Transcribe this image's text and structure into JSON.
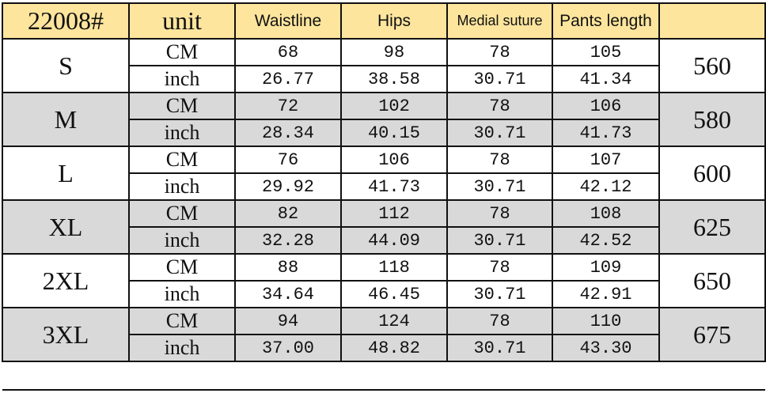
{
  "header": {
    "style_no": "22008#",
    "unit": "unit",
    "columns": [
      "Waistline",
      "Hips",
      "Medial suture",
      "Pants length"
    ],
    "last": ""
  },
  "colors": {
    "header_bg": "#fde59d",
    "alt_row_bg": "#d9d9d9"
  },
  "rows": [
    {
      "size": "S",
      "extra": "560",
      "cm_label": "CM",
      "inch_label": "inch",
      "cm": [
        "68",
        "98",
        "78",
        "105"
      ],
      "inch": [
        "26.77",
        "38.58",
        "30.71",
        "41.34"
      ]
    },
    {
      "size": "M",
      "extra": "580",
      "cm_label": "CM",
      "inch_label": "inch",
      "cm": [
        "72",
        "102",
        "78",
        "106"
      ],
      "inch": [
        "28.34",
        "40.15",
        "30.71",
        "41.73"
      ]
    },
    {
      "size": "L",
      "extra": "600",
      "cm_label": "CM",
      "inch_label": "inch",
      "cm": [
        "76",
        "106",
        "78",
        "107"
      ],
      "inch": [
        "29.92",
        "41.73",
        "30.71",
        "42.12"
      ]
    },
    {
      "size": "XL",
      "extra": "625",
      "cm_label": "CM",
      "inch_label": "inch",
      "cm": [
        "82",
        "112",
        "78",
        "108"
      ],
      "inch": [
        "32.28",
        "44.09",
        "30.71",
        "42.52"
      ]
    },
    {
      "size": "2XL",
      "extra": "650",
      "cm_label": "CM",
      "inch_label": "inch",
      "cm": [
        "88",
        "118",
        "78",
        "109"
      ],
      "inch": [
        "34.64",
        "46.45",
        "30.71",
        "42.91"
      ]
    },
    {
      "size": "3XL",
      "extra": "675",
      "cm_label": "CM",
      "inch_label": "inch",
      "cm": [
        "94",
        "124",
        "78",
        "110"
      ],
      "inch": [
        "37.00",
        "48.82",
        "30.71",
        "43.30"
      ]
    }
  ]
}
